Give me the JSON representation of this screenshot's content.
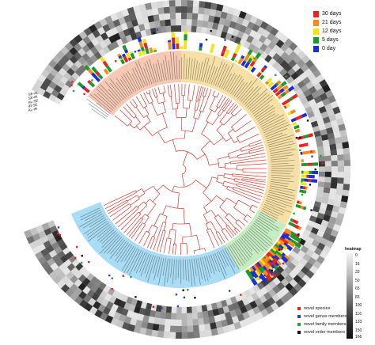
{
  "legend_days": {
    "items": [
      {
        "label": "30 days",
        "color": "#e8231f"
      },
      {
        "label": "21 days",
        "color": "#f58a1f"
      },
      {
        "label": "12 days",
        "color": "#f2e41a"
      },
      {
        "label": "5 days",
        "color": "#1a9a2c"
      },
      {
        "label": "0 day",
        "color": "#1b2fd6"
      }
    ]
  },
  "legend_heatmap": {
    "title": "heatmap",
    "ticks": [
      "0",
      "16",
      "33",
      "50",
      "65",
      "83",
      "100",
      "116",
      "133",
      "150",
      "166"
    ]
  },
  "legend_novel": {
    "items": [
      {
        "label": "novel species",
        "color": "#e8231f"
      },
      {
        "label": "novel genus members",
        "color": "#2a3fd8"
      },
      {
        "label": "novel family members",
        "color": "#2f9e3a"
      },
      {
        "label": "novel order members",
        "color": "#111111"
      }
    ]
  },
  "ring_labels": [
    "SE-AL",
    "SE-IR",
    "AL-SE",
    "IR-SE",
    "AL-IR"
  ],
  "clades": [
    {
      "name": "clade-salmon",
      "color": "#f6c9b4"
    },
    {
      "name": "clade-yellow",
      "color": "#f7e0a6"
    },
    {
      "name": "clade-green",
      "color": "#c6ecc1"
    },
    {
      "name": "clade-blue",
      "color": "#a9dcf5"
    }
  ],
  "colors": {
    "tree_branch": "#d6362f",
    "tree_branch_dark": "#222222",
    "heatmap_dark": "#1a1a1a",
    "heatmap_light": "#f4f4f4"
  }
}
